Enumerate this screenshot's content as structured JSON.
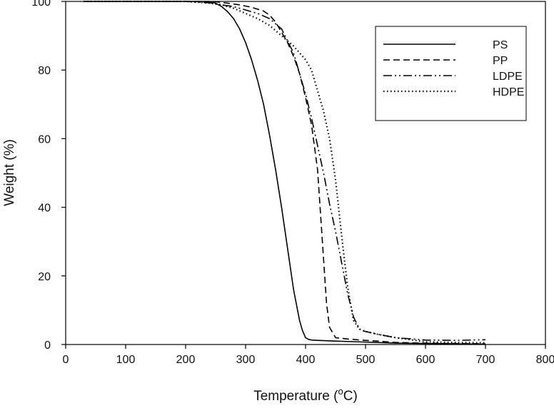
{
  "chart_data": {
    "type": "line",
    "title": "",
    "xlabel": "Temperature (",
    "xlabel_sup": "o",
    "xlabel_suffix": "C)",
    "ylabel": "Weight (%)",
    "xlim": [
      0,
      800
    ],
    "ylim": [
      0,
      100
    ],
    "xticks": [
      0,
      100,
      200,
      300,
      400,
      500,
      600,
      700,
      800
    ],
    "yticks": [
      0,
      20,
      40,
      60,
      80,
      100
    ],
    "grid": false,
    "legend_position": "top-right",
    "series": [
      {
        "name": "PS",
        "style": "solid",
        "x": [
          30,
          100,
          200,
          240,
          250,
          260,
          270,
          280,
          290,
          300,
          310,
          320,
          330,
          340,
          350,
          360,
          370,
          380,
          390,
          395,
          400,
          405,
          410,
          420,
          450,
          500,
          550,
          600,
          650,
          700
        ],
        "y": [
          100,
          100,
          100,
          100,
          99.5,
          98.5,
          97,
          95,
          92,
          88,
          83,
          77,
          70,
          61,
          51,
          40,
          28,
          16,
          7,
          4,
          2,
          1.5,
          1.3,
          1.2,
          1.0,
          0.7,
          0.4,
          0.3,
          0.2,
          0.1
        ]
      },
      {
        "name": "PP",
        "style": "dashed",
        "x": [
          30,
          100,
          200,
          250,
          270,
          290,
          310,
          330,
          340,
          350,
          360,
          370,
          380,
          390,
          400,
          410,
          420,
          430,
          435,
          440,
          450,
          460,
          470,
          480,
          490,
          500,
          520,
          550,
          600,
          650,
          700
        ],
        "y": [
          100,
          100,
          100,
          99.9,
          99.5,
          99,
          98.3,
          97.2,
          96,
          94,
          91,
          88,
          84,
          79,
          72,
          64,
          51,
          25,
          12,
          5,
          2,
          1.8,
          1.6,
          1.5,
          1.3,
          1.2,
          1.0,
          0.6,
          0.4,
          0.3,
          0.2
        ]
      },
      {
        "name": "LDPE",
        "style": "dash-dot-dot",
        "x": [
          30,
          100,
          200,
          240,
          260,
          280,
          300,
          320,
          340,
          360,
          380,
          400,
          410,
          420,
          430,
          440,
          450,
          460,
          470,
          480,
          490,
          495,
          500,
          520,
          550,
          600,
          650,
          700
        ],
        "y": [
          100,
          100,
          100,
          99.6,
          99,
          98.5,
          97.5,
          96.5,
          95,
          92,
          85,
          73,
          66,
          58,
          50,
          41,
          33,
          24,
          15,
          8,
          4.5,
          4,
          3.8,
          3,
          2,
          1.3,
          1.2,
          1.4
        ]
      },
      {
        "name": "HDPE",
        "style": "dotted",
        "x": [
          30,
          100,
          200,
          240,
          260,
          280,
          300,
          320,
          340,
          360,
          380,
          400,
          410,
          420,
          430,
          440,
          450,
          460,
          470,
          480,
          490,
          500,
          520,
          550,
          600,
          650,
          700
        ],
        "y": [
          100,
          100,
          100,
          99.5,
          99,
          98,
          96.5,
          95,
          93,
          90,
          87,
          83,
          80,
          74,
          68,
          60,
          48,
          32,
          17,
          7,
          4.5,
          3.8,
          3,
          2,
          0.8,
          0.6,
          0.5
        ]
      }
    ]
  }
}
